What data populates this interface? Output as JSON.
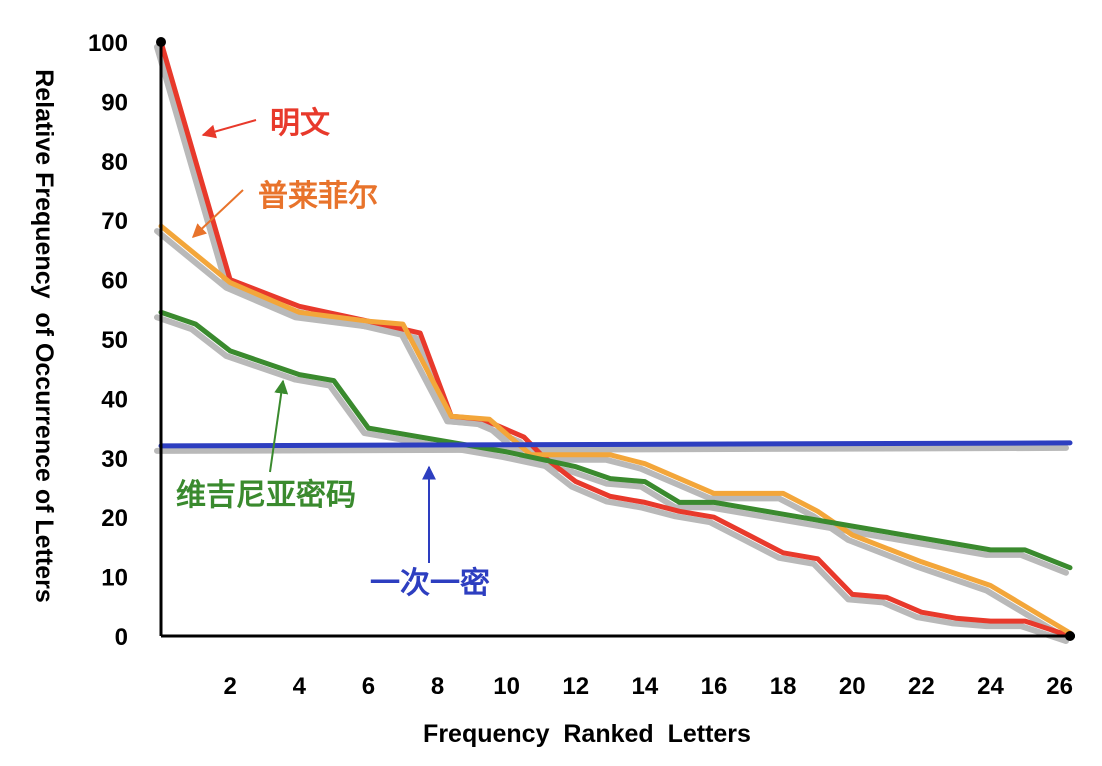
{
  "chart_data": {
    "type": "line",
    "xlabel": "Frequency  Ranked  Letters",
    "ylabel": "Relative Frequency  of Occurrence of Letters",
    "xlim": [
      0,
      26.3
    ],
    "ylim": [
      0,
      100
    ],
    "x_ticks": [
      "2",
      "4",
      "6",
      "8",
      "10",
      "12",
      "14",
      "16",
      "18",
      "20",
      "22",
      "24",
      "26"
    ],
    "y_ticks": [
      "100",
      "90",
      "80",
      "70",
      "60",
      "50",
      "40",
      "30",
      "20",
      "10",
      "0"
    ],
    "grid": false,
    "series": [
      {
        "name": "明文",
        "color": "#e8392b",
        "x": [
          0,
          2,
          4,
          6,
          7.5,
          8.4,
          9.3,
          10.5,
          11,
          12,
          13,
          14,
          15,
          16,
          17,
          18,
          19,
          20,
          21,
          22,
          23,
          24,
          25,
          26.3
        ],
        "y": [
          100,
          60,
          55.5,
          53,
          51,
          37,
          36.5,
          33.5,
          30.5,
          26,
          23.5,
          22.5,
          21,
          20,
          17,
          14,
          13,
          7,
          6.5,
          4,
          3,
          2.5,
          2.5,
          0
        ]
      },
      {
        "name": "普莱菲尔",
        "color": "#f3a63a",
        "x": [
          0,
          2,
          4,
          6,
          7,
          8.4,
          9.5,
          10.7,
          13,
          14,
          16,
          18,
          19,
          20,
          22,
          24,
          26.3
        ],
        "y": [
          69,
          59.5,
          54.5,
          53,
          52.5,
          37,
          36.5,
          30.5,
          30.5,
          29,
          24,
          24,
          21,
          17,
          12.5,
          8.5,
          0.5
        ]
      },
      {
        "name": "维吉尼亚密码",
        "color": "#3a8a2e",
        "x": [
          0,
          1,
          2,
          4,
          5,
          6,
          8,
          10,
          12,
          13,
          14,
          15,
          16,
          18,
          20,
          22,
          24,
          25,
          26.3
        ],
        "y": [
          54.5,
          52.5,
          48,
          44,
          43,
          35,
          33,
          31,
          28.5,
          26.5,
          26,
          22.5,
          22.5,
          20.5,
          18.5,
          16.5,
          14.5,
          14.5,
          11.5
        ]
      },
      {
        "name": "一次一密",
        "color": "#2d3ec0",
        "x": [
          0,
          26.3
        ],
        "y": [
          32,
          32.5
        ]
      }
    ],
    "annotations": [
      {
        "text": "明文",
        "color": "#e8392b"
      },
      {
        "text": "普莱菲尔",
        "color": "#e8732b"
      },
      {
        "text": "维吉尼亚密码",
        "color": "#3a8a2e"
      },
      {
        "text": "一次一密",
        "color": "#2d3ec0"
      }
    ]
  }
}
